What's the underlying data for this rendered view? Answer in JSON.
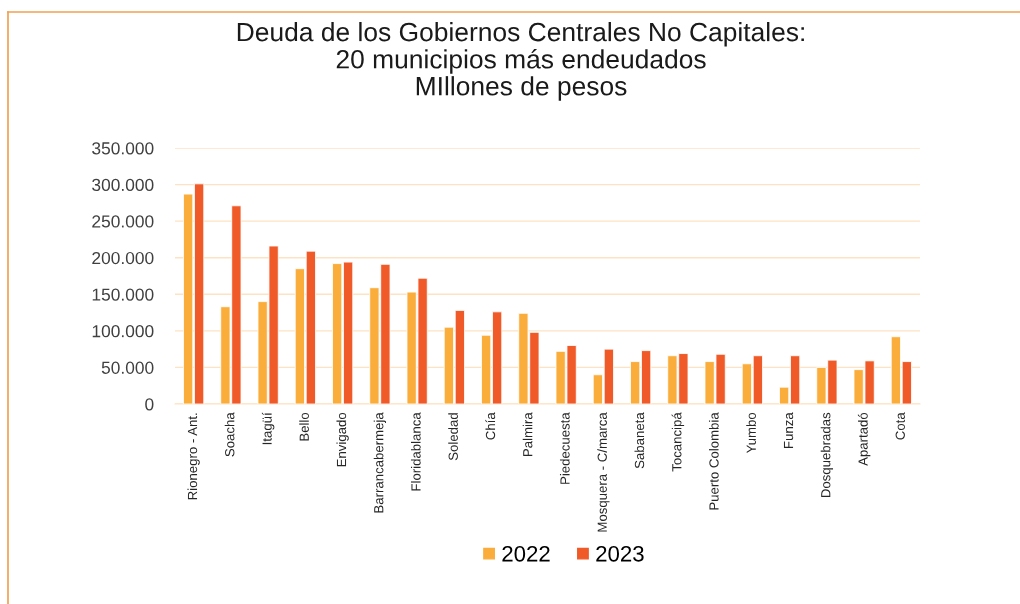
{
  "chart_data": {
    "type": "bar",
    "title": "Deuda de los Gobiernos Centrales No Capitales:\n20 municipios más endeudados\nMIllones de pesos",
    "categories": [
      "Rionegro - Ant.",
      "Soacha",
      "Itagüí",
      "Bello",
      "Envigado",
      "Barrancabermeja",
      "Floridablanca",
      "Soledad",
      "Chía",
      "Palmira",
      "Piedecuesta",
      "Mosquera - C/marca",
      "Sabaneta",
      "Tocancipá",
      "Puerto Colombia",
      "Yumbo",
      "Funza",
      "Dosquebradas",
      "Apartadó",
      "Cota"
    ],
    "series": [
      {
        "name": "2022",
        "color": "#fbad3c",
        "values": [
          287000,
          133000,
          140000,
          185000,
          192000,
          159000,
          153000,
          105000,
          94000,
          124000,
          72000,
          40000,
          58000,
          66000,
          58000,
          55000,
          23000,
          50000,
          47000,
          92000
        ]
      },
      {
        "name": "2023",
        "color": "#f05a28",
        "values": [
          301000,
          271000,
          216000,
          209000,
          194000,
          191000,
          172000,
          128000,
          126000,
          98000,
          80000,
          75000,
          73000,
          69000,
          68000,
          66000,
          66000,
          60000,
          59000,
          58000
        ]
      }
    ],
    "ylim": [
      0,
      350000
    ],
    "yticks": [
      {
        "value": 0,
        "label": "0"
      },
      {
        "value": 50000,
        "label": "50.000"
      },
      {
        "value": 100000,
        "label": "100.000"
      },
      {
        "value": 150000,
        "label": "150.000"
      },
      {
        "value": 200000,
        "label": "200.000"
      },
      {
        "value": 250000,
        "label": "250.000"
      },
      {
        "value": 300000,
        "label": "300.000"
      },
      {
        "value": 350000,
        "label": "350.000"
      }
    ],
    "grid": "y",
    "legend": "bottom"
  }
}
